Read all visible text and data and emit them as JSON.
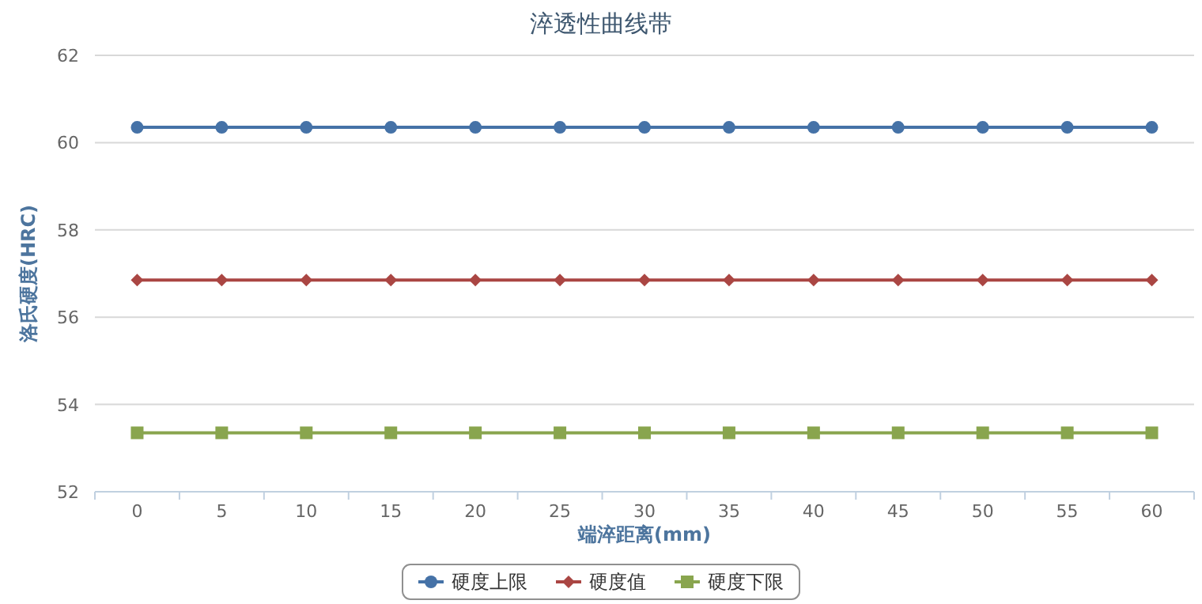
{
  "chart_data": {
    "type": "line",
    "title": "淬透性曲线带",
    "xlabel": "端淬距离(mm)",
    "ylabel": "洛氏硬度(HRC)",
    "categories": [
      "0",
      "5",
      "10",
      "15",
      "20",
      "25",
      "30",
      "35",
      "40",
      "45",
      "50",
      "55",
      "60"
    ],
    "series": [
      {
        "name": "硬度上限",
        "color": "#4572a7",
        "marker": "circle",
        "values": [
          60.35,
          60.35,
          60.35,
          60.35,
          60.35,
          60.35,
          60.35,
          60.35,
          60.35,
          60.35,
          60.35,
          60.35,
          60.35
        ]
      },
      {
        "name": "硬度值",
        "color": "#aa4643",
        "marker": "diamond",
        "values": [
          56.85,
          56.85,
          56.85,
          56.85,
          56.85,
          56.85,
          56.85,
          56.85,
          56.85,
          56.85,
          56.85,
          56.85,
          56.85
        ]
      },
      {
        "name": "硬度下限",
        "color": "#89a54e",
        "marker": "square",
        "values": [
          53.35,
          53.35,
          53.35,
          53.35,
          53.35,
          53.35,
          53.35,
          53.35,
          53.35,
          53.35,
          53.35,
          53.35,
          53.35
        ]
      }
    ],
    "ylim": [
      52,
      62
    ],
    "yticks": [
      52,
      54,
      56,
      58,
      60,
      62
    ],
    "grid": "y",
    "legend": "bottom",
    "line_style": "solid"
  }
}
